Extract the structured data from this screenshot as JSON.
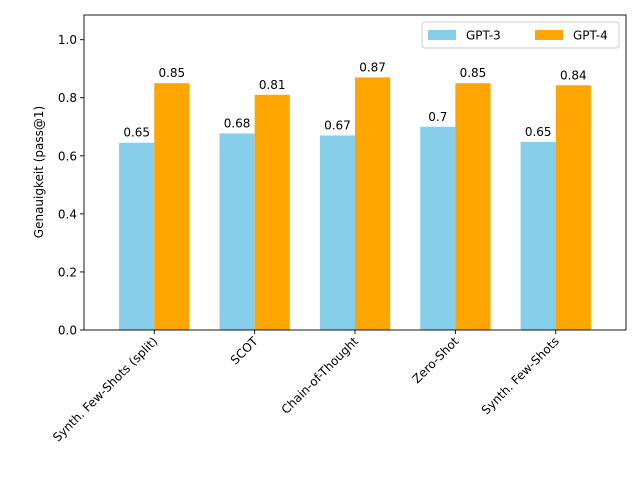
{
  "chart_data": {
    "type": "bar",
    "title": "",
    "xlabel": "",
    "ylabel": "Genauigkeit (pass@1)",
    "ylim": [
      0,
      1.085
    ],
    "yticks": [
      0.0,
      0.2,
      0.4,
      0.6,
      0.8,
      1.0
    ],
    "ytick_labels": [
      "0.0",
      "0.2",
      "0.4",
      "0.6",
      "0.8",
      "1.0"
    ],
    "categories": [
      "Synth. Few-Shots (split)",
      "SCOT",
      "Chain-of-Thought",
      "Zero-Shot",
      "Synth. Few-Shots"
    ],
    "series": [
      {
        "name": "GPT-3",
        "color": "#87CEEB",
        "values": [
          0.645,
          0.677,
          0.67,
          0.7,
          0.648
        ],
        "labels": [
          "0.65",
          "0.68",
          "0.67",
          "0.7",
          "0.65"
        ]
      },
      {
        "name": "GPT-4",
        "color": "#FFA500",
        "values": [
          0.85,
          0.81,
          0.87,
          0.85,
          0.843
        ],
        "labels": [
          "0.85",
          "0.81",
          "0.87",
          "0.85",
          "0.84"
        ]
      }
    ],
    "legend_position": "top-right",
    "grid": false
  }
}
